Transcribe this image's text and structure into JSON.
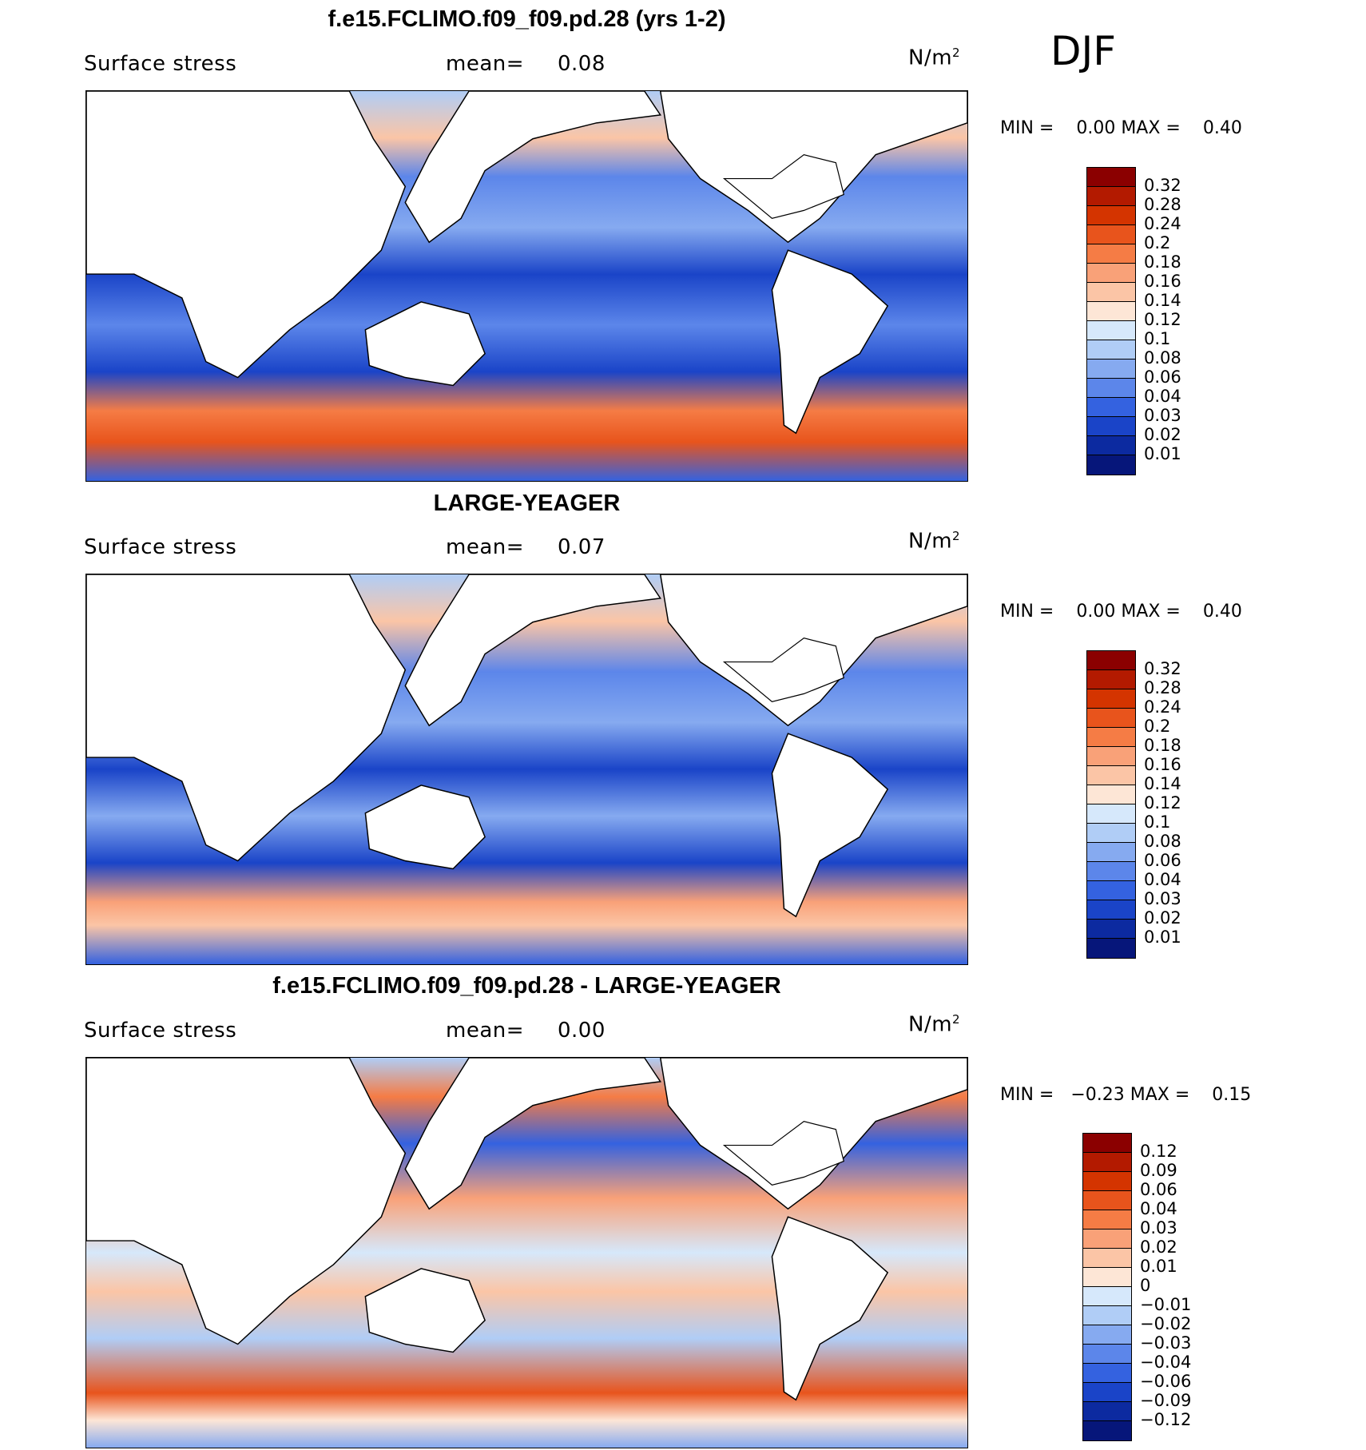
{
  "season": "DJF",
  "panels": [
    {
      "title": "f.e15.FCLIMO.f09_f09.pd.28 (yrs 1-2)",
      "variable": "Surface stress",
      "mean_label": "mean=",
      "mean_value": "0.08",
      "units": "N/m",
      "units_sup": "2",
      "min_label": "MIN =",
      "min_value": "0.00",
      "max_label": "MAX =",
      "max_value": "0.40",
      "colorbar": {
        "labels": [
          "0.32",
          "0.28",
          "0.24",
          "0.2",
          "0.18",
          "0.16",
          "0.14",
          "0.12",
          "0.1",
          "0.08",
          "0.06",
          "0.04",
          "0.03",
          "0.02",
          "0.01"
        ],
        "colors": [
          "#8b0000",
          "#b31a00",
          "#d43400",
          "#e8541c",
          "#f57c45",
          "#f9a178",
          "#fbc5a6",
          "#fde6d6",
          "#d6e8fb",
          "#b0cdf6",
          "#86aaf0",
          "#5c86ea",
          "#3462e0",
          "#1a44c8",
          "#0c2aa0",
          "#06167a"
        ]
      }
    },
    {
      "title": "LARGE-YEAGER",
      "variable": "Surface stress",
      "mean_label": "mean=",
      "mean_value": "0.07",
      "units": "N/m",
      "units_sup": "2",
      "min_label": "MIN =",
      "min_value": "0.00",
      "max_label": "MAX =",
      "max_value": "0.40",
      "colorbar": {
        "labels": [
          "0.32",
          "0.28",
          "0.24",
          "0.2",
          "0.18",
          "0.16",
          "0.14",
          "0.12",
          "0.1",
          "0.08",
          "0.06",
          "0.04",
          "0.03",
          "0.02",
          "0.01"
        ],
        "colors": [
          "#8b0000",
          "#b31a00",
          "#d43400",
          "#e8541c",
          "#f57c45",
          "#f9a178",
          "#fbc5a6",
          "#fde6d6",
          "#d6e8fb",
          "#b0cdf6",
          "#86aaf0",
          "#5c86ea",
          "#3462e0",
          "#1a44c8",
          "#0c2aa0",
          "#06167a"
        ]
      }
    },
    {
      "title": "f.e15.FCLIMO.f09_f09.pd.28 - LARGE-YEAGER",
      "variable": "Surface stress",
      "mean_label": "mean=",
      "mean_value": "0.00",
      "units": "N/m",
      "units_sup": "2",
      "min_label": "MIN =",
      "min_value": "−0.23",
      "max_label": "MAX =",
      "max_value": "0.15",
      "colorbar": {
        "labels": [
          "0.12",
          "0.09",
          "0.06",
          "0.04",
          "0.03",
          "0.02",
          "0.01",
          "0",
          "−0.01",
          "−0.02",
          "−0.03",
          "−0.04",
          "−0.06",
          "−0.09",
          "−0.12"
        ],
        "colors": [
          "#8b0000",
          "#b31a00",
          "#d43400",
          "#e8541c",
          "#f57c45",
          "#f9a178",
          "#fbc5a6",
          "#fde6d6",
          "#d6e8fb",
          "#b0cdf6",
          "#86aaf0",
          "#5c86ea",
          "#3462e0",
          "#1a44c8",
          "#0c2aa0",
          "#06167a"
        ]
      }
    }
  ]
}
